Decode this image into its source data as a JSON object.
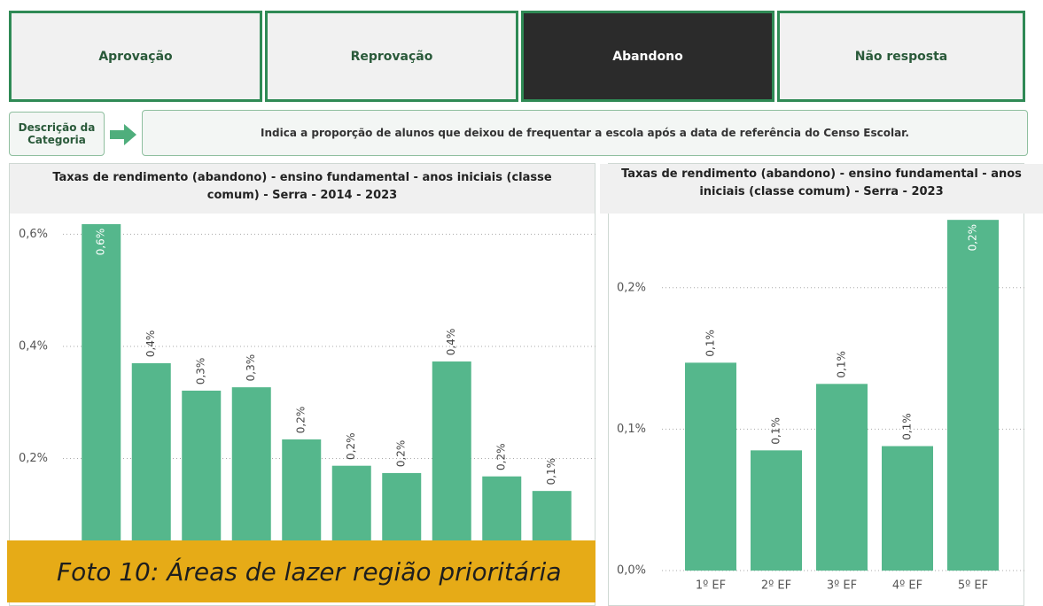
{
  "tabs": [
    "Aprovação",
    "Reprovação",
    "Abandono",
    "Não resposta"
  ],
  "description": {
    "label": "Descrição da Categoria",
    "text": "Indica a proporção de alunos que deixou de frequentar a escola após a data de referência do Censo Escolar."
  },
  "caption": "Foto 10: Áreas de lazer região prioritária",
  "chart_data": [
    {
      "type": "bar",
      "title": "Taxas de rendimento (abandono) - ensino fundamental - anos iniciais (classe comum) - Serra - 2014 - 2023",
      "categories": [
        null,
        null,
        null,
        null,
        null,
        null,
        null,
        null,
        null,
        null
      ],
      "values": [
        0.618,
        0.37,
        0.321,
        0.327,
        0.234,
        0.187,
        0.174,
        0.373,
        0.168,
        0.142
      ],
      "value_labels": [
        "0,6%",
        "0,4%",
        "0,3%",
        "0,3%",
        "0,2%",
        "0,2%",
        "0,2%",
        "0,4%",
        "0,2%",
        "0,1%"
      ],
      "color": "#55b78c",
      "ylim": [
        0,
        0.637
      ],
      "yticks": [
        {
          "value": 0.2,
          "label": "0,2%"
        },
        {
          "value": 0.4,
          "label": "0,4%"
        },
        {
          "value": 0.6,
          "label": "0,6%"
        }
      ],
      "grid": true
    },
    {
      "type": "bar",
      "title": "Taxas de rendimento (abandono) - ensino fundamental - anos iniciais (classe comum) - Serra - 2023",
      "categories": [
        "1º EF",
        "2º EF",
        "3º EF",
        "4º EF",
        "5º EF"
      ],
      "values": [
        0.147,
        0.085,
        0.132,
        0.088,
        0.248
      ],
      "value_labels": [
        "0,1%",
        "0,1%",
        "0,1%",
        "0,1%",
        "0,2%"
      ],
      "color": "#55b78c",
      "ylim": [
        0,
        0.255
      ],
      "yticks": [
        {
          "value": 0,
          "label": "0,0%"
        },
        {
          "value": 0.1,
          "label": "0,1%"
        },
        {
          "value": 0.2,
          "label": "0,2%"
        }
      ],
      "grid": true
    }
  ]
}
